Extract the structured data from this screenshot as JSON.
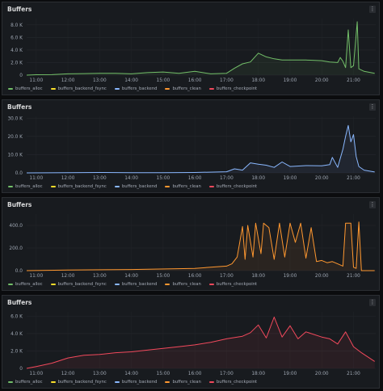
{
  "panels": [
    {
      "title": "Buffers",
      "legend": [
        "buffers_alloc",
        "buffers_backend_fsync",
        "buffers_backend",
        "buffers_clean",
        "buffers_checkpoint"
      ],
      "chart_data": {
        "type": "line",
        "title": "Buffers",
        "xlabel": "",
        "ylabel": "",
        "x_ticks": [
          "11:00",
          "12:00",
          "13:00",
          "14:00",
          "15:00",
          "16:00",
          "17:00",
          "18:00",
          "19:00",
          "20:00",
          "21:00"
        ],
        "y_ticks": [
          "0",
          "2.0 K",
          "4.0 K",
          "6.0 K",
          "8.0 K"
        ],
        "ylim": [
          0,
          9000
        ],
        "grid": true,
        "series": [
          {
            "name": "buffers_alloc",
            "color": "#73bf69",
            "points": [
              [
                "10:42",
                0
              ],
              [
                "11:00",
                60
              ],
              [
                "11:30",
                80
              ],
              [
                "12:00",
                200
              ],
              [
                "12:30",
                250
              ],
              [
                "13:00",
                300
              ],
              [
                "13:30",
                300
              ],
              [
                "14:00",
                200
              ],
              [
                "14:30",
                400
              ],
              [
                "15:00",
                500
              ],
              [
                "15:30",
                300
              ],
              [
                "16:00",
                600
              ],
              [
                "16:30",
                200
              ],
              [
                "17:00",
                300
              ],
              [
                "17:15",
                1100
              ],
              [
                "17:30",
                1800
              ],
              [
                "17:45",
                2100
              ],
              [
                "18:00",
                3500
              ],
              [
                "18:15",
                2900
              ],
              [
                "18:30",
                2600
              ],
              [
                "18:45",
                2400
              ],
              [
                "19:00",
                2400
              ],
              [
                "19:30",
                2400
              ],
              [
                "20:00",
                2300
              ],
              [
                "20:15",
                2100
              ],
              [
                "20:30",
                2000
              ],
              [
                "20:35",
                2800
              ],
              [
                "20:40",
                2200
              ],
              [
                "20:45",
                1200
              ],
              [
                "20:50",
                7200
              ],
              [
                "20:55",
                1200
              ],
              [
                "21:00",
                1500
              ],
              [
                "21:07",
                8500
              ],
              [
                "21:10",
                1000
              ],
              [
                "21:20",
                600
              ],
              [
                "21:40",
                300
              ]
            ]
          }
        ]
      }
    },
    {
      "title": "Buffers",
      "legend": [
        "buffers_alloc",
        "buffers_backend_fsync",
        "buffers_backend",
        "buffers_clean",
        "buffers_checkpoint"
      ],
      "chart_data": {
        "type": "line",
        "title": "Buffers",
        "xlabel": "",
        "ylabel": "",
        "x_ticks": [
          "11:00",
          "12:00",
          "13:00",
          "14:00",
          "15:00",
          "16:00",
          "17:00",
          "18:00",
          "19:00",
          "20:00",
          "21:00"
        ],
        "y_ticks": [
          "0.0",
          "10.0 K",
          "20.0 K",
          "30.0 K"
        ],
        "ylim": [
          0,
          31000
        ],
        "grid": true,
        "series": [
          {
            "name": "buffers_backend",
            "color": "#8ab8ff",
            "points": [
              [
                "10:42",
                0
              ],
              [
                "12:00",
                100
              ],
              [
                "13:00",
                200
              ],
              [
                "14:00",
                150
              ],
              [
                "15:00",
                100
              ],
              [
                "16:00",
                200
              ],
              [
                "17:00",
                600
              ],
              [
                "17:15",
                2200
              ],
              [
                "17:30",
                1500
              ],
              [
                "17:45",
                5500
              ],
              [
                "18:00",
                4800
              ],
              [
                "18:15",
                4200
              ],
              [
                "18:30",
                3000
              ],
              [
                "18:45",
                6000
              ],
              [
                "19:00",
                3500
              ],
              [
                "19:30",
                4000
              ],
              [
                "20:00",
                3900
              ],
              [
                "20:15",
                4500
              ],
              [
                "20:20",
                8500
              ],
              [
                "20:30",
                3000
              ],
              [
                "20:40",
                13000
              ],
              [
                "20:45",
                20000
              ],
              [
                "20:50",
                26000
              ],
              [
                "20:55",
                17000
              ],
              [
                "21:00",
                21000
              ],
              [
                "21:05",
                9000
              ],
              [
                "21:10",
                3500
              ],
              [
                "21:20",
                1500
              ],
              [
                "21:40",
                500
              ]
            ]
          }
        ]
      }
    },
    {
      "title": "Buffers",
      "legend": [
        "buffers_alloc",
        "buffers_backend_fsync",
        "buffers_backend",
        "buffers_clean",
        "buffers_checkpoint"
      ],
      "chart_data": {
        "type": "line",
        "title": "Buffers",
        "xlabel": "",
        "ylabel": "",
        "x_ticks": [
          "11:00",
          "12:00",
          "13:00",
          "14:00",
          "15:00",
          "16:00",
          "17:00",
          "18:00",
          "19:00",
          "20:00",
          "21:00"
        ],
        "y_ticks": [
          "0.0",
          "200.0",
          "400.0"
        ],
        "ylim": [
          0,
          500
        ],
        "grid": true,
        "series": [
          {
            "name": "buffers_clean",
            "color": "#ff9830",
            "points": [
              [
                "10:42",
                0
              ],
              [
                "12:00",
                5
              ],
              [
                "14:00",
                10
              ],
              [
                "16:00",
                20
              ],
              [
                "16:30",
                30
              ],
              [
                "17:00",
                40
              ],
              [
                "17:10",
                60
              ],
              [
                "17:20",
                120
              ],
              [
                "17:30",
                390
              ],
              [
                "17:35",
                100
              ],
              [
                "17:40",
                400
              ],
              [
                "17:50",
                120
              ],
              [
                "17:55",
                420
              ],
              [
                "18:05",
                150
              ],
              [
                "18:10",
                420
              ],
              [
                "18:20",
                380
              ],
              [
                "18:30",
                100
              ],
              [
                "18:40",
                420
              ],
              [
                "18:50",
                120
              ],
              [
                "19:00",
                420
              ],
              [
                "19:10",
                250
              ],
              [
                "19:20",
                420
              ],
              [
                "19:30",
                110
              ],
              [
                "19:40",
                380
              ],
              [
                "19:50",
                80
              ],
              [
                "20:00",
                90
              ],
              [
                "20:10",
                70
              ],
              [
                "20:20",
                80
              ],
              [
                "20:30",
                60
              ],
              [
                "20:40",
                40
              ],
              [
                "20:45",
                420
              ],
              [
                "20:55",
                420
              ],
              [
                "21:00",
                30
              ],
              [
                "21:05",
                20
              ],
              [
                "21:10",
                430
              ],
              [
                "21:15",
                0
              ],
              [
                "21:40",
                0
              ]
            ]
          }
        ]
      }
    },
    {
      "title": "Buffers",
      "legend": [
        "buffers_alloc",
        "buffers_backend_fsync",
        "buffers_backend",
        "buffers_clean",
        "buffers_checkpoint"
      ],
      "chart_data": {
        "type": "line",
        "title": "Buffers",
        "xlabel": "",
        "ylabel": "",
        "x_ticks": [
          "11:00",
          "12:00",
          "13:00",
          "14:00",
          "15:00",
          "16:00",
          "17:00",
          "18:00",
          "19:00",
          "20:00",
          "21:00"
        ],
        "y_ticks": [
          "0",
          "2.0 K",
          "4.0 K",
          "6.0 K"
        ],
        "ylim": [
          0,
          6500
        ],
        "grid": true,
        "series": [
          {
            "name": "buffers_checkpoint",
            "color": "#f2495c",
            "points": [
              [
                "10:42",
                0
              ],
              [
                "11:00",
                200
              ],
              [
                "11:30",
                600
              ],
              [
                "12:00",
                1200
              ],
              [
                "12:30",
                1500
              ],
              [
                "13:00",
                1600
              ],
              [
                "13:30",
                1800
              ],
              [
                "14:00",
                1900
              ],
              [
                "14:30",
                2100
              ],
              [
                "15:00",
                2300
              ],
              [
                "15:30",
                2500
              ],
              [
                "16:00",
                2700
              ],
              [
                "16:30",
                3000
              ],
              [
                "17:00",
                3400
              ],
              [
                "17:30",
                3700
              ],
              [
                "17:45",
                4100
              ],
              [
                "18:00",
                5000
              ],
              [
                "18:15",
                3500
              ],
              [
                "18:30",
                5900
              ],
              [
                "18:45",
                3600
              ],
              [
                "19:00",
                4900
              ],
              [
                "19:15",
                3400
              ],
              [
                "19:30",
                4200
              ],
              [
                "20:00",
                3600
              ],
              [
                "20:15",
                3400
              ],
              [
                "20:30",
                2800
              ],
              [
                "20:45",
                4200
              ],
              [
                "21:00",
                2500
              ],
              [
                "21:15",
                1800
              ],
              [
                "21:30",
                1200
              ],
              [
                "21:40",
                800
              ]
            ]
          }
        ]
      }
    }
  ],
  "legend_colors": {
    "buffers_alloc": "#73bf69",
    "buffers_backend_fsync": "#fade2a",
    "buffers_backend": "#8ab8ff",
    "buffers_clean": "#ff9830",
    "buffers_checkpoint": "#f2495c"
  },
  "menu_icon": "kebab-menu-icon"
}
